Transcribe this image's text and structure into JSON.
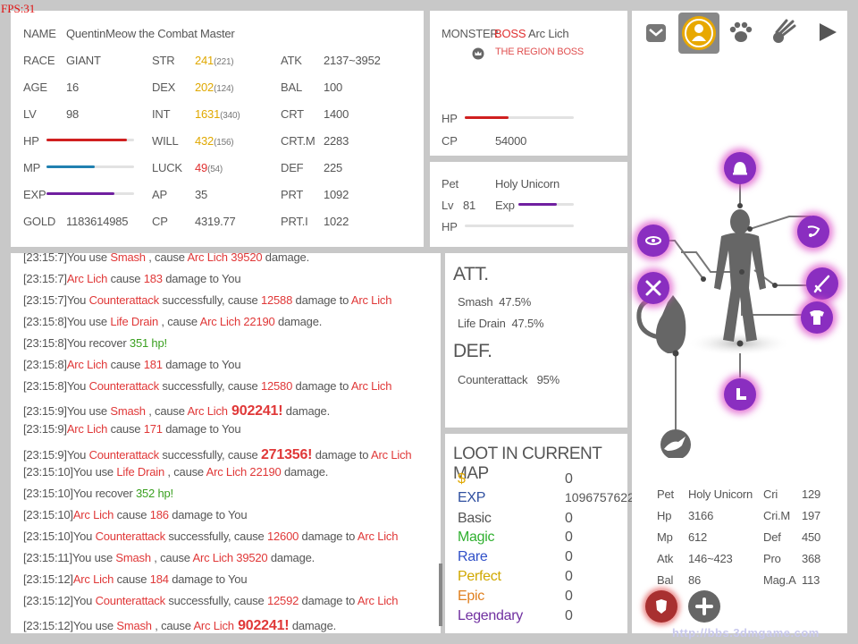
{
  "fps": "FPS:31",
  "character": {
    "name_label": "NAME",
    "name": "QuentinMeow the Combat Master",
    "race_label": "RACE",
    "race": "GIANT",
    "age_label": "AGE",
    "age": "16",
    "lv_label": "LV",
    "lv": "98",
    "hp_label": "HP",
    "hp_fraction": 0.92,
    "mp_label": "MP",
    "mp_fraction": 0.55,
    "exp_label": "EXP",
    "exp_fraction": 0.78,
    "gold_label": "GOLD",
    "gold": "1183614985",
    "str_label": "STR",
    "str": "241",
    "str_base": "(221)",
    "dex_label": "DEX",
    "dex": "202",
    "dex_base": "(124)",
    "int_label": "INT",
    "int": "1631",
    "int_base": "(340)",
    "will_label": "WILL",
    "will": "432",
    "will_base": "(156)",
    "luck_label": "LUCK",
    "luck": "49",
    "luck_base": "(54)",
    "ap_label": "AP",
    "ap": "35",
    "cp_label": "CP",
    "cp": "4319.77",
    "atk_label": "ATK",
    "atk": "2137~3952",
    "bal_label": "BAL",
    "bal": "100",
    "crt_label": "CRT",
    "crt": "1400",
    "crtm_label": "CRT.M",
    "crtm": "2283",
    "def_label": "DEF",
    "def": "225",
    "prt_label": "PRT",
    "prt": "1092",
    "prti_label": "PRT.I",
    "prti": "1022"
  },
  "monster": {
    "label": "MONSTER",
    "boss_tag": "BOSS",
    "name": "Arc Lich",
    "subtitle": "THE REGION BOSS",
    "hp_label": "HP",
    "hp_fraction": 0.4,
    "cp_label": "CP",
    "cp": "54000"
  },
  "pet": {
    "pet_label": "Pet",
    "name": "Holy Unicorn",
    "lv_label": "Lv",
    "lv": "81",
    "exp_label": "Exp",
    "exp_fraction": 0.7,
    "hp_label": "HP",
    "hp_fraction": 0.0
  },
  "log": [
    {
      "time": "[23:15:7]",
      "parts": [
        [
          "You use ",
          ""
        ],
        [
          "Smash",
          "r"
        ],
        [
          " , cause ",
          ""
        ],
        [
          "Arc Lich",
          "r"
        ],
        [
          " 39520",
          "r"
        ],
        [
          " damage.",
          ""
        ]
      ]
    },
    {
      "time": "[23:15:7]",
      "parts": [
        [
          "Arc Lich",
          "r"
        ],
        [
          " cause ",
          ""
        ],
        [
          "183",
          "r"
        ],
        [
          " damage to You",
          ""
        ]
      ]
    },
    {
      "time": "[23:15:7]",
      "parts": [
        [
          "You ",
          ""
        ],
        [
          "Counterattack",
          "r"
        ],
        [
          " successfully, cause ",
          ""
        ],
        [
          "12588",
          "r"
        ],
        [
          " damage to ",
          ""
        ],
        [
          "Arc Lich",
          "r"
        ]
      ]
    },
    {
      "time": "[23:15:8]",
      "parts": [
        [
          "You use ",
          ""
        ],
        [
          "Life Drain",
          "r"
        ],
        [
          " , cause ",
          ""
        ],
        [
          "Arc Lich",
          "r"
        ],
        [
          " 22190",
          "r"
        ],
        [
          " damage.",
          ""
        ]
      ]
    },
    {
      "time": "[23:15:8]",
      "parts": [
        [
          "You recover ",
          ""
        ],
        [
          "351 hp!",
          "g"
        ]
      ]
    },
    {
      "time": "[23:15:8]",
      "parts": [
        [
          "Arc Lich",
          "r"
        ],
        [
          " cause ",
          ""
        ],
        [
          "181",
          "r"
        ],
        [
          " damage to You",
          ""
        ]
      ]
    },
    {
      "time": "[23:15:8]",
      "parts": [
        [
          "You ",
          ""
        ],
        [
          "Counterattack",
          "r"
        ],
        [
          " successfully, cause ",
          ""
        ],
        [
          "12580",
          "r"
        ],
        [
          " damage to ",
          ""
        ],
        [
          "Arc Lich",
          "r"
        ]
      ]
    },
    {
      "time": "[23:15:9]",
      "parts": [
        [
          "You use ",
          ""
        ],
        [
          "Smash",
          "r"
        ],
        [
          " , cause ",
          ""
        ],
        [
          "Arc Lich",
          "r"
        ],
        [
          " 902241!",
          "big"
        ],
        [
          "  damage.",
          ""
        ]
      ]
    },
    {
      "time": "[23:15:9]",
      "parts": [
        [
          "Arc Lich",
          "r"
        ],
        [
          " cause ",
          ""
        ],
        [
          "171",
          "r"
        ],
        [
          " damage to You",
          ""
        ]
      ]
    },
    {
      "time": "[23:15:9]",
      "parts": [
        [
          "You ",
          ""
        ],
        [
          "Counterattack",
          "r"
        ],
        [
          " successfully, cause ",
          ""
        ],
        [
          "271356!",
          "big"
        ],
        [
          " damage to ",
          ""
        ],
        [
          "Arc Lich",
          "r"
        ]
      ]
    },
    {
      "time": "[23:15:10]",
      "parts": [
        [
          "You use ",
          ""
        ],
        [
          "Life Drain",
          "r"
        ],
        [
          " , cause ",
          ""
        ],
        [
          "Arc Lich",
          "r"
        ],
        [
          " 22190",
          "r"
        ],
        [
          " damage.",
          ""
        ]
      ]
    },
    {
      "time": "[23:15:10]",
      "parts": [
        [
          "You recover ",
          ""
        ],
        [
          "352 hp!",
          "g"
        ]
      ]
    },
    {
      "time": "[23:15:10]",
      "parts": [
        [
          "Arc Lich",
          "r"
        ],
        [
          " cause ",
          ""
        ],
        [
          "186",
          "r"
        ],
        [
          " damage to You",
          ""
        ]
      ]
    },
    {
      "time": "[23:15:10]",
      "parts": [
        [
          "You ",
          ""
        ],
        [
          "Counterattack",
          "r"
        ],
        [
          " successfully, cause ",
          ""
        ],
        [
          "12600",
          "r"
        ],
        [
          " damage to ",
          ""
        ],
        [
          "Arc Lich",
          "r"
        ]
      ]
    },
    {
      "time": "[23:15:11]",
      "parts": [
        [
          "You use ",
          ""
        ],
        [
          "Smash",
          "r"
        ],
        [
          " , cause ",
          ""
        ],
        [
          "Arc Lich",
          "r"
        ],
        [
          " 39520",
          "r"
        ],
        [
          " damage.",
          ""
        ]
      ]
    },
    {
      "time": "[23:15:12]",
      "parts": [
        [
          "Arc Lich",
          "r"
        ],
        [
          " cause ",
          ""
        ],
        [
          "184",
          "r"
        ],
        [
          " damage to You",
          ""
        ]
      ]
    },
    {
      "time": "[23:15:12]",
      "parts": [
        [
          "You ",
          ""
        ],
        [
          "Counterattack",
          "r"
        ],
        [
          " successfully, cause ",
          ""
        ],
        [
          "12592",
          "r"
        ],
        [
          " damage to ",
          ""
        ],
        [
          "Arc Lich",
          "r"
        ]
      ]
    },
    {
      "time": "[23:15:12]",
      "parts": [
        [
          "You use ",
          ""
        ],
        [
          "Smash",
          "r"
        ],
        [
          " , cause ",
          ""
        ],
        [
          "Arc Lich",
          "r"
        ],
        [
          " 902241!",
          "big"
        ],
        [
          "  damage.",
          ""
        ]
      ]
    }
  ],
  "skills": {
    "att_title": "ATT.",
    "att": [
      {
        "name": "Smash",
        "pct": "47.5%"
      },
      {
        "name": "Life Drain",
        "pct": "47.5%"
      }
    ],
    "def_title": "DEF.",
    "def": [
      {
        "name": "Counterattack",
        "pct": "95%"
      }
    ]
  },
  "loot": {
    "title": "LOOT IN CURRENT MAP",
    "rows": [
      {
        "label": "$",
        "value": "0",
        "color": "#e0a800"
      },
      {
        "label": "EXP",
        "value": "1096757622",
        "color": "#3050a0"
      },
      {
        "label": "Basic",
        "value": "0",
        "color": "#555555"
      },
      {
        "label": "Magic",
        "value": "0",
        "color": "#30b030"
      },
      {
        "label": "Rare",
        "value": "0",
        "color": "#3050c8"
      },
      {
        "label": "Perfect",
        "value": "0",
        "color": "#d0a800"
      },
      {
        "label": "Epic",
        "value": "0",
        "color": "#e08020"
      },
      {
        "label": "Legendary",
        "value": "0",
        "color": "#7030a0"
      }
    ]
  },
  "equip_pet": {
    "pet_label": "Pet",
    "pet": "Holy Unicorn",
    "hp_label": "Hp",
    "hp": "3166",
    "mp_label": "Mp",
    "mp": "612",
    "atk_label": "Atk",
    "atk": "146~423",
    "bal_label": "Bal",
    "bal": "86",
    "cri_label": "Cri",
    "cri": "129",
    "crim_label": "Cri.M",
    "crim": "197",
    "def_label": "Def",
    "def": "450",
    "pro_label": "Pro",
    "pro": "368",
    "maga_label": "Mag.A",
    "maga": "113"
  },
  "tabs": [
    "inventory-icon",
    "character-icon",
    "pet-icon",
    "skill-icon",
    "play-icon"
  ],
  "colors": {
    "accent": "#8a2ec0",
    "gold_tab": "#e8a800",
    "hp_bar": "#d02020",
    "mp_bar": "#2080b0",
    "exp_bar": "#7020a0"
  },
  "watermark": "http://bbs.3dmgame.com"
}
